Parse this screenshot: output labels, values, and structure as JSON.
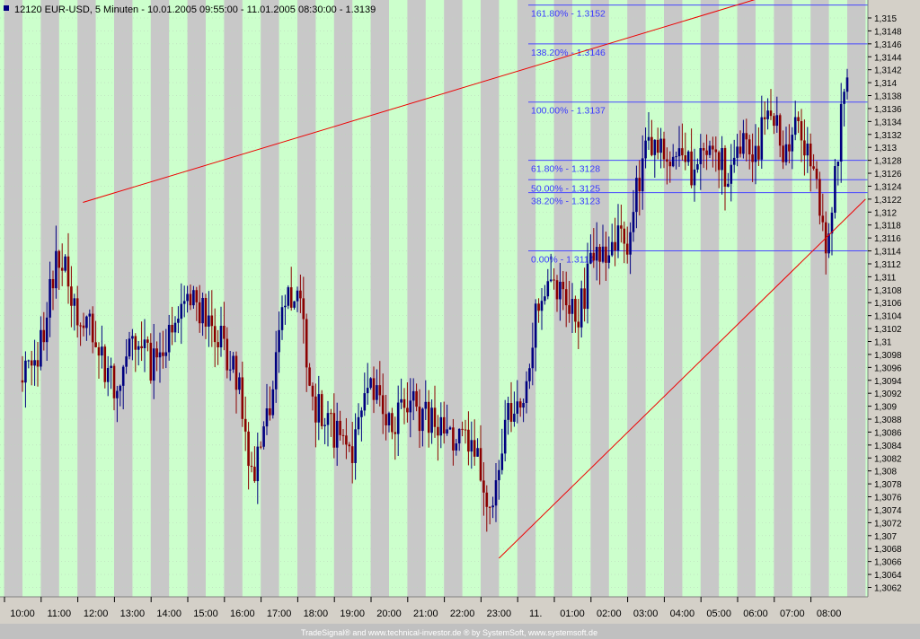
{
  "chart_data": {
    "type": "candlestick",
    "title": "12120  EUR-USD, 5 Minuten - 10.01.2005 09:55:00 - 11.01.2005 08:30:00 - 1.3139",
    "footer": "TradeSignal® and www.technical-investor.de ® by SystemSoft, www.systemsoft.de",
    "ylim": [
      1.306,
      1.3156
    ],
    "yticks": [
      "1,315",
      "1,3148",
      "1,3146",
      "1,3144",
      "1,3142",
      "1,314",
      "1,3138",
      "1,3136",
      "1,3134",
      "1,3132",
      "1,313",
      "1,3128",
      "1,3126",
      "1,3124",
      "1,3122",
      "1,312",
      "1,3118",
      "1,3116",
      "1,3114",
      "1,3112",
      "1,311",
      "1,3108",
      "1,3106",
      "1,3104",
      "1,3102",
      "1,31",
      "1,3098",
      "1,3096",
      "1,3094",
      "1,3092",
      "1,309",
      "1,3088",
      "1,3086",
      "1,3084",
      "1,3082",
      "1,308",
      "1,3078",
      "1,3076",
      "1,3074",
      "1,3072",
      "1,307",
      "1,3068",
      "1,3066",
      "1,3064",
      "1,3062"
    ],
    "xticks": [
      "10:00",
      "11:00",
      "12:00",
      "13:00",
      "14:00",
      "15:00",
      "16:00",
      "17:00",
      "18:00",
      "19:00",
      "20:00",
      "21:00",
      "22:00",
      "23:00",
      "11.",
      "01:00",
      "02:00",
      "03:00",
      "04:00",
      "05:00",
      "06:00",
      "07:00",
      "08:00"
    ],
    "hour_waypoints": [
      {
        "hour": 0,
        "price": 1.3094
      },
      {
        "hour": 0.5,
        "price": 1.31
      },
      {
        "hour": 1.0,
        "price": 1.3114
      },
      {
        "hour": 1.5,
        "price": 1.3104
      },
      {
        "hour": 2.0,
        "price": 1.31
      },
      {
        "hour": 2.5,
        "price": 1.3092
      },
      {
        "hour": 3.0,
        "price": 1.3102
      },
      {
        "hour": 3.5,
        "price": 1.3096
      },
      {
        "hour": 4.0,
        "price": 1.31
      },
      {
        "hour": 4.6,
        "price": 1.3108
      },
      {
        "hour": 5.0,
        "price": 1.3104
      },
      {
        "hour": 5.6,
        "price": 1.3098
      },
      {
        "hour": 6.0,
        "price": 1.309
      },
      {
        "hour": 6.3,
        "price": 1.3078
      },
      {
        "hour": 6.8,
        "price": 1.3092
      },
      {
        "hour": 7.2,
        "price": 1.3108
      },
      {
        "hour": 7.6,
        "price": 1.3104
      },
      {
        "hour": 8.0,
        "price": 1.309
      },
      {
        "hour": 8.5,
        "price": 1.3086
      },
      {
        "hour": 9.0,
        "price": 1.3084
      },
      {
        "hour": 9.5,
        "price": 1.3092
      },
      {
        "hour": 10.0,
        "price": 1.3088
      },
      {
        "hour": 10.5,
        "price": 1.309
      },
      {
        "hour": 11.0,
        "price": 1.3088
      },
      {
        "hour": 11.5,
        "price": 1.3086
      },
      {
        "hour": 12.0,
        "price": 1.3084
      },
      {
        "hour": 12.4,
        "price": 1.3082
      },
      {
        "hour": 12.8,
        "price": 1.3074
      },
      {
        "hour": 13.0,
        "price": 1.308
      },
      {
        "hour": 13.2,
        "price": 1.3088
      },
      {
        "hour": 13.6,
        "price": 1.309
      },
      {
        "hour": 14.0,
        "price": 1.3104
      },
      {
        "hour": 14.4,
        "price": 1.3108
      },
      {
        "hour": 14.8,
        "price": 1.3106
      },
      {
        "hour": 15.2,
        "price": 1.3104
      },
      {
        "hour": 15.6,
        "price": 1.3116
      },
      {
        "hour": 16.0,
        "price": 1.3114
      },
      {
        "hour": 16.5,
        "price": 1.3116
      },
      {
        "hour": 17.0,
        "price": 1.313
      },
      {
        "hour": 17.5,
        "price": 1.313
      },
      {
        "hour": 18.0,
        "price": 1.3128
      },
      {
        "hour": 18.4,
        "price": 1.3126
      },
      {
        "hour": 18.8,
        "price": 1.313
      },
      {
        "hour": 19.2,
        "price": 1.3126
      },
      {
        "hour": 19.6,
        "price": 1.3132
      },
      {
        "hour": 20.0,
        "price": 1.313
      },
      {
        "hour": 20.4,
        "price": 1.3134
      },
      {
        "hour": 20.8,
        "price": 1.313
      },
      {
        "hour": 21.2,
        "price": 1.3134
      },
      {
        "hour": 21.6,
        "price": 1.3126
      },
      {
        "hour": 21.9,
        "price": 1.3116
      },
      {
        "hour": 22.1,
        "price": 1.3122
      },
      {
        "hour": 22.3,
        "price": 1.3132
      },
      {
        "hour": 22.45,
        "price": 1.3142
      },
      {
        "hour": 22.5,
        "price": 1.3139
      }
    ],
    "fibonacci": [
      {
        "label": "161.80% - 1.3152",
        "price": 1.3152
      },
      {
        "label": "138.20% - 1.3146",
        "price": 1.3146
      },
      {
        "label": "100.00% - 1.3137",
        "price": 1.3137
      },
      {
        "label": "61.80% - 1.3128",
        "price": 1.3128
      },
      {
        "label": "50.00% - 1.3125",
        "price": 1.3125
      },
      {
        "label": "38.20% - 1.3123",
        "price": 1.3123
      },
      {
        "label": "0.00% - 1.3114",
        "price": 1.3114
      }
    ],
    "trendlines": [
      {
        "from": {
          "hour": 1.65,
          "price": 1.31215
        },
        "to": {
          "hour": 23.0,
          "price": 1.3158
        }
      },
      {
        "from": {
          "hour": 13.0,
          "price": 1.30665
        },
        "to": {
          "hour": 23.0,
          "price": 1.3122
        }
      }
    ],
    "colors": {
      "up": "#000080",
      "down": "#8b0000",
      "band_green": "#ccffcc",
      "band_gray": "#c8c8c8",
      "trend": "#ee0000",
      "fib": "#4848ff",
      "frame": "#d4d0c8"
    }
  }
}
